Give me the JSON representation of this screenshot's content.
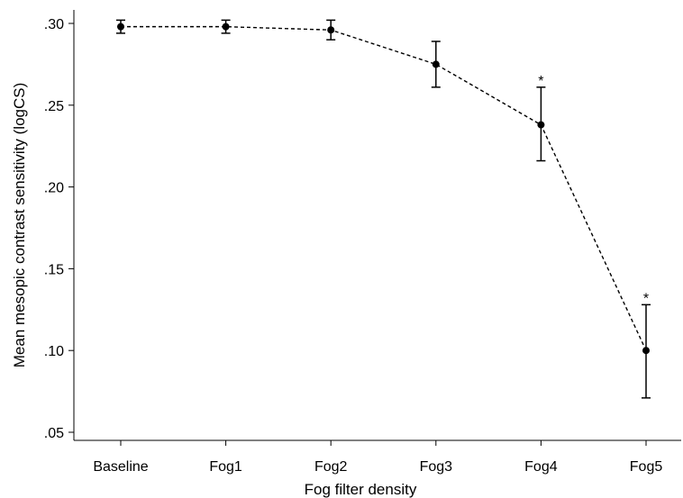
{
  "chart_data": {
    "type": "line",
    "xlabel": "Fog filter density",
    "ylabel": "Mean mesopic contrast sensitivity (logCS)",
    "categories": [
      "Baseline",
      "Fog1",
      "Fog2",
      "Fog3",
      "Fog4",
      "Fog5"
    ],
    "ylim": [
      0.05,
      0.3
    ],
    "yticks": [
      0.3,
      0.25,
      0.2,
      0.15,
      0.1,
      0.05
    ],
    "ytick_labels": [
      ".30",
      ".25",
      ".20",
      ".15",
      ".10",
      ".05"
    ],
    "grid": false,
    "series": [
      {
        "values": [
          0.298,
          0.298,
          0.296,
          0.275,
          0.238,
          0.1
        ],
        "error_low": [
          0.294,
          0.294,
          0.29,
          0.261,
          0.216,
          0.071
        ],
        "error_high": [
          0.302,
          0.302,
          0.302,
          0.289,
          0.261,
          0.128
        ],
        "marker_color": "#000000",
        "line_style": "dashed"
      }
    ],
    "annotations": [
      {
        "category": "Fog4",
        "text": "*"
      },
      {
        "category": "Fog5",
        "text": "*"
      }
    ]
  }
}
